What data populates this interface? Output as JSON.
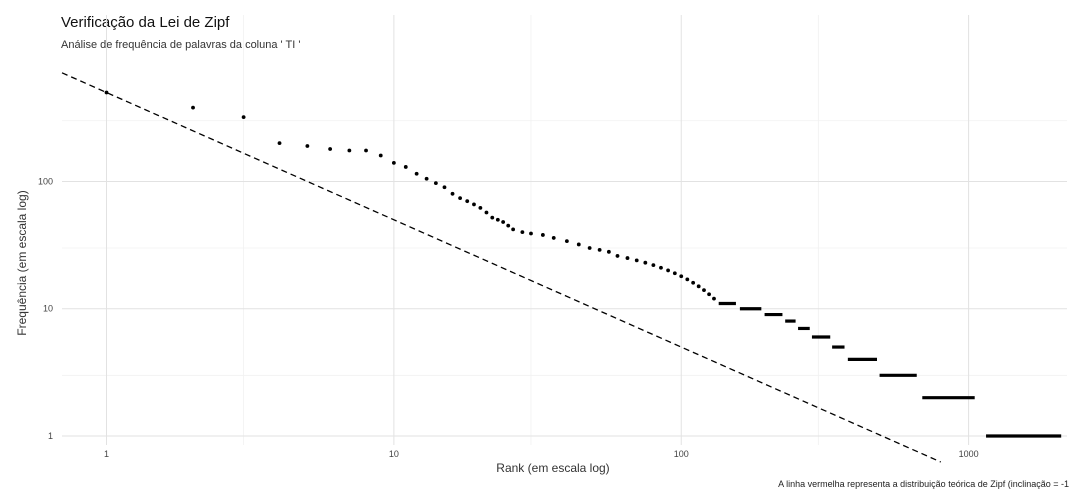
{
  "chart_data": {
    "type": "scatter",
    "title": "Verificação da Lei de Zipf",
    "subtitle": "Análise de frequência de palavras da coluna ' TI '",
    "xlabel": "Rank (em escala log)",
    "ylabel": "Frequência (em escala log)",
    "caption": "A linha vermelha representa a distribuição teórica de Zipf (inclinação = -1",
    "x_scale": "log",
    "y_scale": "log",
    "xlim": [
      0.7,
      2200
    ],
    "ylim": [
      0.85,
      900
    ],
    "x_ticks": [
      {
        "value": 1,
        "label": "1"
      },
      {
        "value": 10,
        "label": "10"
      },
      {
        "value": 100,
        "label": "100"
      },
      {
        "value": 1000,
        "label": "1000"
      }
    ],
    "y_ticks": [
      {
        "value": 1,
        "label": "1"
      },
      {
        "value": 10,
        "label": "10"
      },
      {
        "value": 100,
        "label": "100"
      }
    ],
    "grid": true,
    "series": [
      {
        "marker": "point",
        "color": "#000000",
        "points": [
          [
            1,
            500
          ],
          [
            2,
            380
          ],
          [
            3,
            320
          ],
          [
            4,
            200
          ],
          [
            5,
            190
          ],
          [
            6,
            180
          ],
          [
            7,
            175
          ],
          [
            8,
            175
          ],
          [
            9,
            160
          ],
          [
            10,
            140
          ],
          [
            11,
            130
          ],
          [
            12,
            115
          ],
          [
            13,
            105
          ],
          [
            14,
            97
          ],
          [
            15,
            90
          ],
          [
            16,
            80
          ],
          [
            17,
            74
          ],
          [
            18,
            70
          ],
          [
            19,
            66
          ],
          [
            20,
            62
          ],
          [
            21,
            57
          ],
          [
            22,
            52
          ],
          [
            23,
            50
          ],
          [
            24,
            48
          ],
          [
            25,
            45
          ],
          [
            26,
            42
          ],
          [
            28,
            40
          ],
          [
            30,
            39
          ],
          [
            33,
            38
          ],
          [
            36,
            36
          ],
          [
            40,
            34
          ],
          [
            44,
            32
          ],
          [
            48,
            30
          ],
          [
            52,
            29
          ],
          [
            56,
            28
          ],
          [
            60,
            26
          ],
          [
            65,
            25
          ],
          [
            70,
            24
          ],
          [
            75,
            23
          ],
          [
            80,
            22
          ],
          [
            85,
            21
          ],
          [
            90,
            20
          ],
          [
            95,
            19
          ],
          [
            100,
            18
          ],
          [
            105,
            17
          ],
          [
            110,
            16
          ],
          [
            115,
            15
          ],
          [
            120,
            14
          ],
          [
            125,
            13
          ],
          [
            130,
            12
          ]
        ],
        "segments": [
          {
            "y": 11,
            "x": [
              135,
              155
            ]
          },
          {
            "y": 10,
            "x": [
              160,
              190
            ]
          },
          {
            "y": 9,
            "x": [
              195,
              225
            ]
          },
          {
            "y": 8,
            "x": [
              230,
              250
            ]
          },
          {
            "y": 7,
            "x": [
              255,
              280
            ]
          },
          {
            "y": 6,
            "x": [
              285,
              330
            ]
          },
          {
            "y": 5,
            "x": [
              335,
              370
            ]
          },
          {
            "y": 4,
            "x": [
              380,
              480
            ]
          },
          {
            "y": 3,
            "x": [
              490,
              660
            ]
          },
          {
            "y": 2,
            "x": [
              690,
              1050
            ]
          },
          {
            "y": 1,
            "x": [
              1150,
              2100
            ]
          }
        ]
      },
      {
        "line": "dashed",
        "color": "#000000",
        "points": [
          [
            0.7,
            714
          ],
          [
            800,
            0.625
          ]
        ]
      }
    ]
  }
}
